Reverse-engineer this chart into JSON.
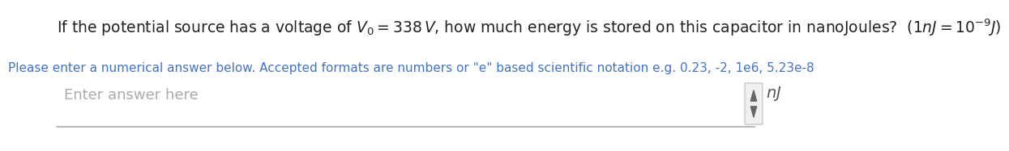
{
  "bg_color": "#ffffff",
  "main_text": "If the potential source has a voltage of $V_0 = 338\\,V$, how much energy is stored on this capacitor in nanoJoules?  $(1nJ = 10^{-9}J)$",
  "sub_text": "Please enter a numerical answer below. Accepted formats are numbers or \"e\" based scientific notation e.g. 0.23, -2, 1e6, 5.23e-8",
  "sub_text_color": "#4472C4",
  "placeholder_text": "Enter answer here",
  "placeholder_color": "#aaaaaa",
  "unit_text": "$nJ$",
  "unit_color": "#555555",
  "main_fontsize": 13.5,
  "sub_fontsize": 11,
  "placeholder_fontsize": 13,
  "unit_fontsize": 14,
  "line_color": "#aaaaaa",
  "spinner_color": "#555555"
}
